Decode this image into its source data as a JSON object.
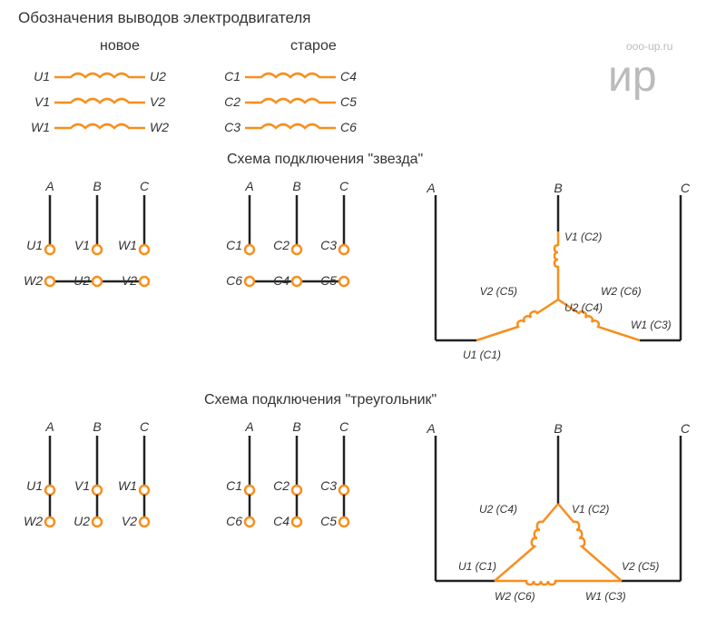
{
  "colors": {
    "orange": "#f78f1e",
    "black": "#222222",
    "text": "#333333",
    "logo_gray": "#bbbbbb",
    "background": "#ffffff"
  },
  "title": "Обозначения выводов электродвигателя",
  "col_new": "новое",
  "col_old": "старое",
  "section_star": "Схема подключения \"звезда\"",
  "section_delta": "Схема подключения \"треугольник\"",
  "logo_url": "ooo-up.ru",
  "logo_text": "ир",
  "notation": {
    "new": [
      {
        "l": "U1",
        "r": "U2"
      },
      {
        "l": "V1",
        "r": "V2"
      },
      {
        "l": "W1",
        "r": "W2"
      }
    ],
    "old": [
      {
        "l": "C1",
        "r": "C4"
      },
      {
        "l": "C2",
        "r": "C5"
      },
      {
        "l": "C3",
        "r": "C6"
      }
    ]
  },
  "phases": [
    "A",
    "B",
    "C"
  ],
  "terminal_blocks": {
    "new_top": [
      "U1",
      "V1",
      "W1"
    ],
    "new_bot": [
      "W2",
      "U2",
      "V2"
    ],
    "old_top": [
      "C1",
      "C2",
      "C3"
    ],
    "old_bot": [
      "C6",
      "C4",
      "C5"
    ]
  },
  "star_labels": {
    "top": "V1 (C2)",
    "mid_l": "V2 (C5)",
    "mid_c": "U2 (C4)",
    "mid_r": "W2 (C6)",
    "bot_l": "U1 (C1)",
    "bot_r": "W1 (C3)"
  },
  "delta_labels": {
    "top_l": "U2 (C4)",
    "top_r": "V1 (C2)",
    "mid_l": "U1 (C1)",
    "mid_r": "V2 (C5)",
    "bot_l": "W2 (C6)",
    "bot_r": "W1 (C3)"
  },
  "stroke_widths": {
    "thin_black": 2.5,
    "orange": 2.5,
    "circle": 2.5
  }
}
